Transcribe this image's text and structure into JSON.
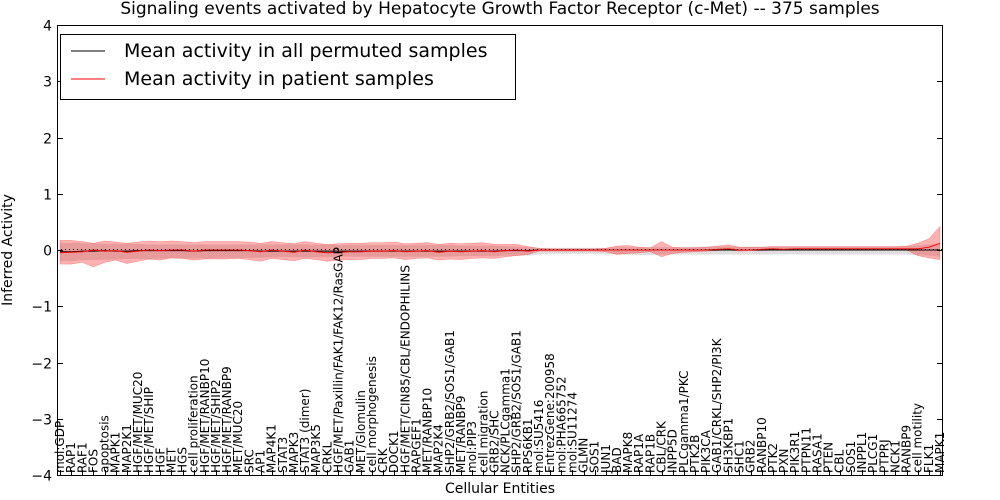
{
  "chart_data": {
    "type": "line",
    "title": "Signaling events activated by Hepatocyte Growth Factor Receptor (c-Met) -- 375 samples",
    "xlabel": "Cellular Entities",
    "ylabel": "Inferred Activity",
    "ylim": [
      -4,
      4
    ],
    "yticks": [
      -4,
      -3,
      -2,
      -1,
      0,
      1,
      2,
      3,
      4
    ],
    "ytick_labels": [
      "−4",
      "−3",
      "−2",
      "−1",
      "0",
      "1",
      "2",
      "3",
      "4"
    ],
    "grid": false,
    "legend_position": "top-left",
    "categories": [
      "mol:GDP",
      "RAP1",
      "RAF1",
      "FOS",
      "apoptosis",
      "MAPK1",
      "MAP2K1",
      "HGF/MET/MUC20",
      "HGF/MET/SHIP",
      "HGF",
      "MET",
      "HGS",
      "cell proliferation",
      "HGF/MET/RANBP10",
      "HGF/MET/SHIP2",
      "HGF/MET/RANBP9",
      "MET/MUC20",
      "SRC",
      "AP1",
      "MAP4K1",
      "STAT3",
      "MAPK3",
      "STAT3 (dimer)",
      "MAP3K5",
      "CRKL",
      "HGF/MET/Paxillin/FAK1/FAK12/RasGAP",
      "GAB1",
      "MET/Glomulin",
      "cell morphogenesis",
      "CRK",
      "DOCK1",
      "HGF/MET/CIN85/CBL/ENDOPHILINS",
      "RAPGEF1",
      "MET/RANBP10",
      "MAP2K4",
      "SHP2/GRB2/SOS1/GAB1",
      "MET/RANBP9",
      "mol:PIP3",
      "cell migration",
      "GRB2/SHC",
      "NCK/PLCgamma1",
      "SHP2/GRB2/SOS1/GAB1",
      "RPS6KB1",
      "mol:SU5416",
      "EntrezGene:200958",
      "mol:PHA665752",
      "mol:SU11274",
      "GLMN",
      "SOS1",
      "JUN1",
      "BAD",
      "MAPK8",
      "RAP1A",
      "RAP1B",
      "CBL/CRK",
      "INPP5D",
      "PLCgamma1/PKC",
      "PTK2B",
      "PIK3CA",
      "GAB1/CRKL/SHP2/PI3K",
      "SH3KBP1",
      "SHC1",
      "GRB2",
      "RANBP10",
      "PTK2",
      "PXN",
      "PIK3R1",
      "PTPN11",
      "RASA1",
      "PTEN",
      "CBL",
      "SOS1",
      "INPPL1",
      "PLCG1",
      "PTPRJ",
      "NCK1",
      "RANBP9",
      "cell motility",
      "FLK1",
      "MAPK1"
    ],
    "series": [
      {
        "name": "Mean activity in all permuted samples",
        "color": "#000000",
        "values": [
          -0.03,
          -0.03,
          -0.02,
          -0.02,
          -0.01,
          -0.02,
          -0.02,
          -0.01,
          -0.01,
          -0.01,
          -0.01,
          -0.01,
          -0.02,
          -0.01,
          -0.01,
          -0.01,
          -0.01,
          -0.01,
          -0.02,
          -0.02,
          -0.02,
          -0.02,
          -0.02,
          -0.02,
          -0.02,
          -0.02,
          -0.02,
          -0.02,
          -0.02,
          -0.02,
          -0.02,
          -0.02,
          -0.02,
          -0.02,
          -0.02,
          -0.02,
          -0.02,
          -0.02,
          -0.02,
          -0.02,
          -0.01,
          -0.01,
          -0.01,
          0.0,
          0.0,
          0.0,
          0.0,
          0.0,
          0.0,
          0.0,
          0.0,
          0.0,
          0.0,
          0.0,
          0.0,
          0.0,
          0.0,
          0.0,
          0.0,
          0.0,
          0.0,
          0.0,
          0.0,
          0.0,
          0.0,
          0.0,
          0.0,
          0.0,
          0.0,
          0.0,
          0.0,
          0.0,
          0.0,
          0.0,
          0.0,
          0.0,
          0.0,
          0.0,
          0.0,
          0.0
        ],
        "lower": [
          -0.2,
          -0.2,
          -0.18,
          -0.18,
          -0.17,
          -0.17,
          -0.16,
          -0.16,
          -0.16,
          -0.15,
          -0.15,
          -0.15,
          -0.15,
          -0.15,
          -0.14,
          -0.14,
          -0.14,
          -0.14,
          -0.14,
          -0.13,
          -0.13,
          -0.13,
          -0.13,
          -0.13,
          -0.13,
          -0.12,
          -0.12,
          -0.12,
          -0.12,
          -0.12,
          -0.12,
          -0.12,
          -0.12,
          -0.12,
          -0.12,
          -0.12,
          -0.11,
          -0.11,
          -0.11,
          -0.11,
          -0.1,
          -0.1,
          -0.1,
          -0.08,
          -0.07,
          -0.07,
          -0.07,
          -0.07,
          -0.07,
          -0.07,
          -0.08,
          -0.08,
          -0.09,
          -0.09,
          -0.08,
          -0.08,
          -0.08,
          -0.08,
          -0.08,
          -0.08,
          -0.08,
          -0.08,
          -0.08,
          -0.08,
          -0.08,
          -0.08,
          -0.08,
          -0.08,
          -0.08,
          -0.08,
          -0.08,
          -0.08,
          -0.08,
          -0.08,
          -0.08,
          -0.08,
          -0.08,
          -0.09,
          -0.1,
          -0.12
        ],
        "upper": [
          0.13,
          0.13,
          0.12,
          0.12,
          0.11,
          0.11,
          0.11,
          0.11,
          0.1,
          0.1,
          0.1,
          0.1,
          0.1,
          0.1,
          0.1,
          0.1,
          0.1,
          0.1,
          0.1,
          0.1,
          0.1,
          0.1,
          0.1,
          0.09,
          0.09,
          0.09,
          0.09,
          0.09,
          0.09,
          0.09,
          0.09,
          0.09,
          0.09,
          0.09,
          0.09,
          0.09,
          0.08,
          0.08,
          0.08,
          0.08,
          0.07,
          0.06,
          0.05,
          0.04,
          0.04,
          0.04,
          0.04,
          0.04,
          0.04,
          0.04,
          0.05,
          0.05,
          0.05,
          0.05,
          0.05,
          0.05,
          0.05,
          0.06,
          0.06,
          0.06,
          0.06,
          0.06,
          0.06,
          0.06,
          0.06,
          0.06,
          0.06,
          0.06,
          0.06,
          0.06,
          0.06,
          0.06,
          0.06,
          0.06,
          0.06,
          0.06,
          0.07,
          0.08,
          0.1,
          0.12
        ]
      },
      {
        "name": "Mean activity in patient samples",
        "color": "#ff0000",
        "values": [
          -0.05,
          -0.04,
          -0.03,
          0.0,
          -0.02,
          -0.01,
          -0.04,
          -0.02,
          0.0,
          -0.01,
          0.0,
          0.0,
          -0.02,
          0.0,
          0.0,
          0.0,
          0.0,
          -0.01,
          -0.03,
          0.0,
          -0.02,
          -0.04,
          0.0,
          -0.03,
          -0.05,
          -0.04,
          -0.03,
          -0.03,
          -0.02,
          -0.02,
          -0.01,
          -0.03,
          -0.02,
          -0.01,
          -0.04,
          -0.02,
          -0.03,
          -0.02,
          -0.01,
          -0.03,
          -0.01,
          0.0,
          -0.02,
          0.0,
          0.0,
          0.0,
          0.0,
          0.0,
          0.0,
          0.0,
          0.0,
          0.0,
          0.0,
          0.0,
          0.0,
          0.0,
          0.0,
          0.0,
          0.0,
          0.01,
          0.02,
          0.0,
          0.0,
          0.01,
          0.02,
          0.01,
          0.02,
          0.02,
          0.02,
          0.02,
          0.02,
          0.02,
          0.02,
          0.02,
          0.02,
          0.02,
          0.02,
          0.02,
          0.05,
          0.12
        ],
        "lower": [
          -0.25,
          -0.25,
          -0.22,
          -0.3,
          -0.22,
          -0.18,
          -0.24,
          -0.2,
          -0.16,
          -0.18,
          -0.14,
          -0.15,
          -0.18,
          -0.16,
          -0.16,
          -0.16,
          -0.15,
          -0.17,
          -0.2,
          -0.15,
          -0.17,
          -0.19,
          -0.15,
          -0.17,
          -0.2,
          -0.18,
          -0.17,
          -0.17,
          -0.15,
          -0.15,
          -0.14,
          -0.17,
          -0.15,
          -0.14,
          -0.18,
          -0.16,
          -0.17,
          -0.15,
          -0.14,
          -0.15,
          -0.12,
          -0.1,
          -0.08,
          -0.02,
          -0.02,
          -0.02,
          -0.02,
          -0.02,
          -0.02,
          -0.03,
          -0.08,
          -0.06,
          -0.05,
          -0.03,
          -0.12,
          -0.06,
          -0.04,
          -0.03,
          -0.02,
          -0.01,
          0.0,
          -0.02,
          -0.01,
          -0.01,
          0.0,
          0.0,
          0.0,
          0.0,
          0.0,
          0.0,
          0.0,
          0.0,
          0.0,
          0.0,
          0.0,
          0.0,
          0.0,
          -0.1,
          -0.14,
          -0.17
        ],
        "upper": [
          0.17,
          0.17,
          0.15,
          0.12,
          0.16,
          0.14,
          0.12,
          0.14,
          0.16,
          0.15,
          0.16,
          0.15,
          0.13,
          0.15,
          0.15,
          0.15,
          0.15,
          0.14,
          0.12,
          0.15,
          0.13,
          0.11,
          0.15,
          0.12,
          0.1,
          0.11,
          0.12,
          0.12,
          0.13,
          0.13,
          0.14,
          0.11,
          0.12,
          0.13,
          0.1,
          0.12,
          0.11,
          0.12,
          0.13,
          0.1,
          0.1,
          0.1,
          0.06,
          0.03,
          0.02,
          0.02,
          0.02,
          0.02,
          0.02,
          0.03,
          0.07,
          0.08,
          0.05,
          0.04,
          0.15,
          0.05,
          0.04,
          0.04,
          0.05,
          0.07,
          0.09,
          0.05,
          0.05,
          0.05,
          0.06,
          0.06,
          0.06,
          0.06,
          0.06,
          0.06,
          0.06,
          0.06,
          0.06,
          0.06,
          0.06,
          0.06,
          0.07,
          0.12,
          0.2,
          0.42
        ]
      }
    ]
  }
}
